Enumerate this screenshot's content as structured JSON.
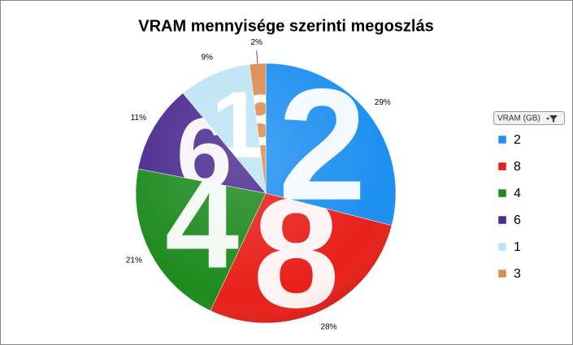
{
  "chart_data": {
    "type": "pie",
    "title": "VRAM mennyisége szerinti megoszlás",
    "legend_title": "VRAM (GB)",
    "categories": [
      "2",
      "8",
      "4",
      "6",
      "1",
      "3"
    ],
    "values": [
      29,
      28,
      21,
      11,
      9,
      2
    ],
    "value_labels": [
      "29%",
      "28%",
      "21%",
      "11%",
      "9%",
      "2%"
    ],
    "colors": [
      "#1c8ff0",
      "#e8201a",
      "#1e8a1e",
      "#4a2a90",
      "#bde4f4",
      "#dc8a4e"
    ],
    "legend": "right"
  }
}
